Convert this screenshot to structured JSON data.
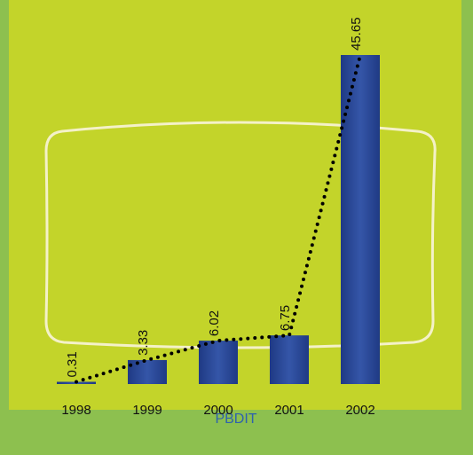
{
  "chart_data": {
    "type": "bar",
    "title": "PBDIT",
    "categories": [
      "1998",
      "1999",
      "2000",
      "2001",
      "2002"
    ],
    "values": [
      0.31,
      3.33,
      6.02,
      6.75,
      45.65
    ],
    "color": "#2c4a9c",
    "line_color": "#000000"
  }
}
